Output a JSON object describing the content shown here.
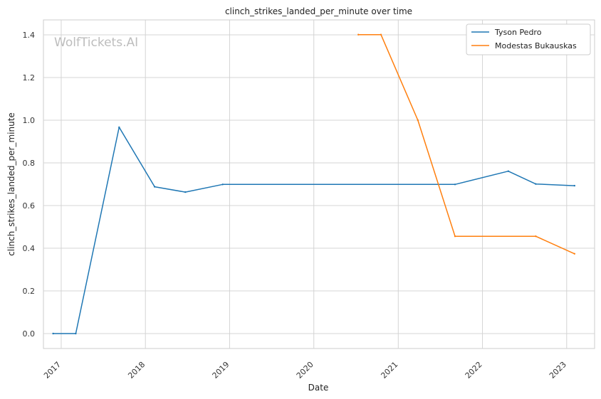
{
  "chart_data": {
    "type": "line",
    "title": "clinch_strikes_landed_per_minute over time",
    "xlabel": "Date",
    "ylabel": "clinch_strikes_landed_per_minute",
    "watermark": "WolfTickets.AI",
    "x_ticks": [
      "2017",
      "2018",
      "2019",
      "2020",
      "2021",
      "2022",
      "2023"
    ],
    "y_ticks": [
      "0.0",
      "0.2",
      "0.4",
      "0.6",
      "0.8",
      "1.0",
      "1.2",
      "1.4"
    ],
    "xlim": [
      "2016-10-16",
      "2023-05-02"
    ],
    "ylim": [
      -0.07,
      1.47
    ],
    "grid": true,
    "legend_position": "top-right",
    "series": [
      {
        "name": "Tyson Pedro",
        "color": "#1f77b4",
        "points": [
          {
            "x": "2016-11-27",
            "y": 0.0
          },
          {
            "x": "2017-03-05",
            "y": 0.0
          },
          {
            "x": "2017-09-09",
            "y": 0.967
          },
          {
            "x": "2018-02-10",
            "y": 0.688
          },
          {
            "x": "2018-06-23",
            "y": 0.663
          },
          {
            "x": "2018-12-02",
            "y": 0.699
          },
          {
            "x": "2021-09-04",
            "y": 0.699
          },
          {
            "x": "2022-04-23",
            "y": 0.761
          },
          {
            "x": "2022-08-20",
            "y": 0.701
          },
          {
            "x": "2023-02-04",
            "y": 0.693
          }
        ]
      },
      {
        "name": "Modestas Bukauskas",
        "color": "#ff7f0e",
        "points": [
          {
            "x": "2020-07-12",
            "y": 1.401
          },
          {
            "x": "2020-10-18",
            "y": 1.401
          },
          {
            "x": "2021-03-27",
            "y": 1.0
          },
          {
            "x": "2021-09-04",
            "y": 0.456
          },
          {
            "x": "2022-08-20",
            "y": 0.456
          },
          {
            "x": "2023-02-04",
            "y": 0.374
          }
        ]
      }
    ]
  }
}
